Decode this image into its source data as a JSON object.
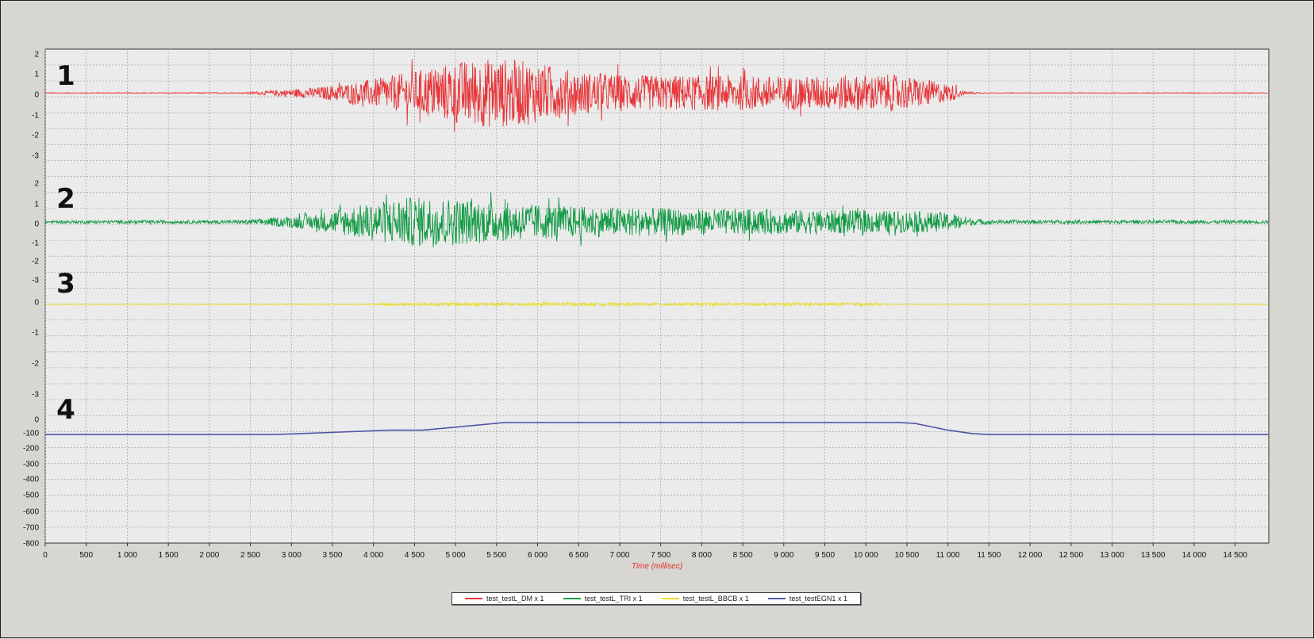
{
  "chart_data": {
    "type": "line",
    "xlabel": "Time (millisec)",
    "xlim": [
      0,
      15000
    ],
    "xticks": [
      "0",
      "500",
      "1 000",
      "1 500",
      "2 000",
      "2 500",
      "3 000",
      "3 500",
      "4 000",
      "4 500",
      "5 000",
      "5 500",
      "6 000",
      "6 500",
      "7 000",
      "7 500",
      "8 000",
      "8 500",
      "9 000",
      "9 500",
      "10 000",
      "10 500",
      "11 000",
      "11 500",
      "12 000",
      "12 500",
      "13 000",
      "13 500",
      "14 000",
      "14 500"
    ],
    "grid": true,
    "legend_position": "bottom",
    "panels": [
      {
        "label": "1",
        "ylim": [
          -3.4,
          2.1
        ],
        "yticks": [
          "2",
          "1",
          "0",
          "-1",
          "-2",
          "-3"
        ],
        "series": {
          "name": "test_testL_DM x 1",
          "color": "#e8363a",
          "kind": "noise",
          "envelope": [
            [
              0,
              0.02
            ],
            [
              2400,
              0.03
            ],
            [
              2700,
              0.12
            ],
            [
              3300,
              0.3
            ],
            [
              3800,
              0.6
            ],
            [
              4300,
              1.0
            ],
            [
              4700,
              1.4
            ],
            [
              5100,
              1.75
            ],
            [
              5500,
              1.9
            ],
            [
              5900,
              1.7
            ],
            [
              6500,
              1.15
            ],
            [
              7200,
              0.95
            ],
            [
              8200,
              0.95
            ],
            [
              9200,
              0.9
            ],
            [
              9900,
              0.95
            ],
            [
              10300,
              1.0
            ],
            [
              10700,
              0.75
            ],
            [
              11050,
              0.45
            ],
            [
              11200,
              0.08
            ],
            [
              11500,
              0.02
            ],
            [
              15000,
              0.02
            ]
          ]
        }
      },
      {
        "label": "2",
        "ylim": [
          -2.9,
          2.2
        ],
        "yticks": [
          "2",
          "1",
          "0",
          "-1",
          "-2",
          "-3"
        ],
        "series": {
          "name": "test_testL_TRI x 1",
          "color": "#119a44",
          "kind": "noise",
          "envelope": [
            [
              0,
              0.08
            ],
            [
              2400,
              0.1
            ],
            [
              2700,
              0.2
            ],
            [
              3300,
              0.45
            ],
            [
              3800,
              0.9
            ],
            [
              4300,
              1.3
            ],
            [
              4700,
              1.4
            ],
            [
              5200,
              1.2
            ],
            [
              5800,
              1.0
            ],
            [
              6500,
              0.85
            ],
            [
              7500,
              0.75
            ],
            [
              8500,
              0.7
            ],
            [
              9500,
              0.65
            ],
            [
              10500,
              0.6
            ],
            [
              11050,
              0.5
            ],
            [
              11300,
              0.18
            ],
            [
              11600,
              0.1
            ],
            [
              15000,
              0.09
            ]
          ]
        }
      },
      {
        "label": "3",
        "ylim": [
          -3.6,
          0.3
        ],
        "yticks": [
          "0",
          "-1",
          "-2",
          "-3"
        ],
        "series": {
          "name": "test_testL_BBCB x 1",
          "color": "#e8e020",
          "kind": "noise",
          "envelope": [
            [
              0,
              0.01
            ],
            [
              4000,
              0.02
            ],
            [
              4200,
              0.05
            ],
            [
              5500,
              0.07
            ],
            [
              6000,
              0.06
            ],
            [
              8000,
              0.05
            ],
            [
              10100,
              0.05
            ],
            [
              10300,
              0.01
            ],
            [
              15000,
              0.01
            ]
          ]
        }
      },
      {
        "label": "4",
        "ylim": [
          -800,
          0
        ],
        "yticks": [
          "0",
          "-100",
          "-200",
          "-300",
          "-400",
          "-500",
          "-600",
          "-700",
          "-800"
        ],
        "series": {
          "name": "test_testEGN1 x 1",
          "color": "#5056a8",
          "kind": "line",
          "points": [
            [
              0,
              -98
            ],
            [
              2800,
              -98
            ],
            [
              3600,
              -82
            ],
            [
              4200,
              -70
            ],
            [
              4600,
              -70
            ],
            [
              5000,
              -50
            ],
            [
              5600,
              -20
            ],
            [
              10400,
              -20
            ],
            [
              10600,
              -26
            ],
            [
              11000,
              -70
            ],
            [
              11300,
              -92
            ],
            [
              11500,
              -98
            ],
            [
              15000,
              -98
            ]
          ]
        }
      }
    ]
  }
}
